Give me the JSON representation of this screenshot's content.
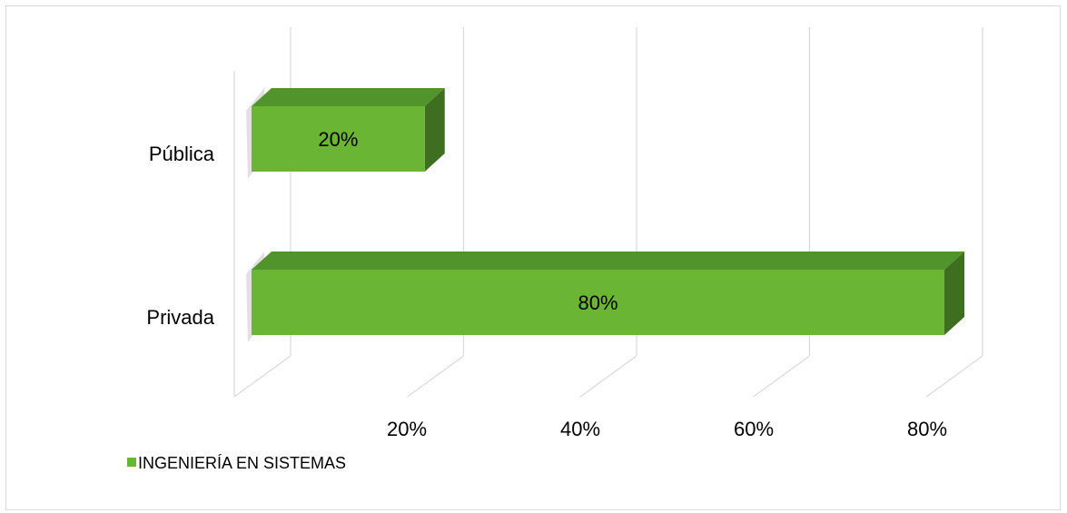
{
  "chart_data": {
    "type": "bar",
    "orientation": "horizontal",
    "three_d": true,
    "categories": [
      "Pública",
      "Privada"
    ],
    "series": [
      {
        "name": "INGENIERÍA EN SISTEMAS",
        "values": [
          20,
          80
        ],
        "color": "#6bb535"
      }
    ],
    "data_labels": [
      "20%",
      "80%"
    ],
    "x_ticks": [
      "20%",
      "40%",
      "60%",
      "80%"
    ],
    "xlim": [
      0,
      80
    ],
    "title": "",
    "xlabel": "",
    "ylabel": "",
    "grid": true,
    "legend_position": "bottom-left",
    "colors": {
      "bar_front": "#6bb535",
      "bar_top": "#52942c",
      "bar_side": "#3e6e1f",
      "grid": "#d9d9d9"
    }
  }
}
